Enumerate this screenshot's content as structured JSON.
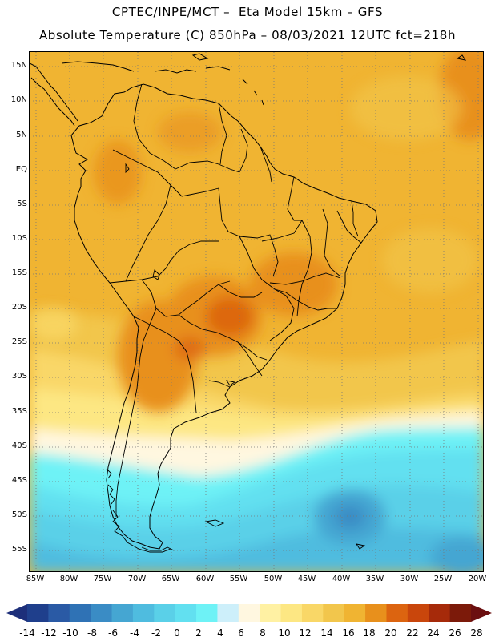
{
  "title": {
    "line1": "CPTEC/INPE/MCT –  Eta Model 15km – GFS",
    "line2": "Absolute Temperature (C) 850hPa – 08/03/2021 12UTC fct=218h"
  },
  "axes": {
    "lat_labels": [
      "15N",
      "10N",
      "5N",
      "EQ",
      "5S",
      "10S",
      "15S",
      "20S",
      "25S",
      "30S",
      "35S",
      "40S",
      "45S",
      "50S",
      "55S"
    ],
    "lon_labels": [
      "85W",
      "80W",
      "75W",
      "70W",
      "65W",
      "60W",
      "55W",
      "50W",
      "45W",
      "40W",
      "35W",
      "30W",
      "25W",
      "20W"
    ]
  },
  "legend": {
    "labels": [
      "-14",
      "-12",
      "-10",
      "-8",
      "-6",
      "-4",
      "-2",
      "0",
      "2",
      "4",
      "6",
      "8",
      "10",
      "12",
      "14",
      "16",
      "18",
      "20",
      "22",
      "24",
      "26",
      "28"
    ],
    "colors": [
      "#1f3f8c",
      "#2a5aa5",
      "#2f72b5",
      "#3a8cc5",
      "#45a6d2",
      "#4fbcdf",
      "#5ad0e8",
      "#62e0f0",
      "#6ef2f6",
      "#cdeffa",
      "#fff7e0",
      "#fff1a3",
      "#fde783",
      "#f9d767",
      "#f2c64c",
      "#f0b432",
      "#e8901c",
      "#dc6410",
      "#c9460c",
      "#a62a0a",
      "#7c1a0a"
    ],
    "low_end_color": "#1d2f7a",
    "high_end_color": "#6b0f10"
  },
  "colors": {
    "land_outline": "#000000",
    "grid": "#777777"
  }
}
